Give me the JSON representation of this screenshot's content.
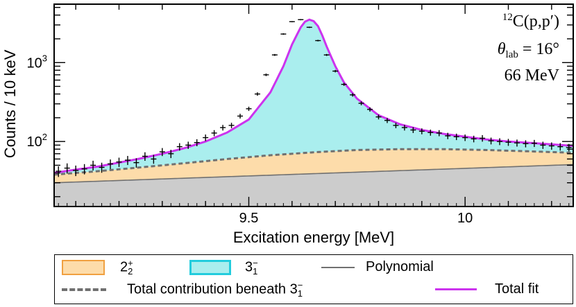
{
  "chart_data": {
    "type": "line",
    "scale": "log-y",
    "xlabel": "Excitation energy [MeV]",
    "ylabel": "Counts / 10 keV",
    "xlim": [
      9.05,
      10.25
    ],
    "ylim": [
      15,
      5500
    ],
    "x_ticks": [
      {
        "value": 9.5,
        "label": "9.5"
      },
      {
        "value": 10.0,
        "label": "10"
      }
    ],
    "y_ticks": [
      {
        "value": 100,
        "base": "10",
        "exp": "2"
      },
      {
        "value": 1000,
        "base": "10",
        "exp": "3"
      }
    ],
    "annotation": {
      "reaction_mass": "12",
      "reaction": "C(p,p′)",
      "theta": "θ",
      "theta_sub": "lab",
      "theta_val": " = 16°",
      "energy": "66 MeV"
    },
    "series": [
      {
        "name": "Polynomial",
        "color": "#707070",
        "x": [
          9.05,
          10.25
        ],
        "y": [
          30,
          51
        ]
      },
      {
        "name": "Total contribution beneath 3-1",
        "color": "#707070",
        "dash": true,
        "x": [
          9.05,
          9.15,
          9.25,
          9.35,
          9.45,
          9.55,
          9.65,
          9.75,
          9.85,
          9.95,
          10.05,
          10.15,
          10.25
        ],
        "y": [
          38,
          42,
          47,
          53,
          60,
          67,
          73,
          78,
          80,
          80,
          78,
          75,
          72
        ]
      },
      {
        "name": "Total fit",
        "color": "#cc33ee",
        "x": [
          9.05,
          9.1,
          9.15,
          9.2,
          9.25,
          9.3,
          9.35,
          9.4,
          9.45,
          9.5,
          9.55,
          9.58,
          9.6,
          9.62,
          9.63,
          9.64,
          9.65,
          9.66,
          9.67,
          9.68,
          9.7,
          9.72,
          9.75,
          9.8,
          9.85,
          9.9,
          9.95,
          10.0,
          10.05,
          10.1,
          10.15,
          10.2,
          10.25
        ],
        "y": [
          40,
          44,
          48,
          54,
          61,
          70,
          82,
          100,
          130,
          190,
          420,
          900,
          1700,
          2800,
          3300,
          3500,
          3350,
          2900,
          2200,
          1600,
          900,
          560,
          350,
          215,
          165,
          140,
          125,
          115,
          106,
          100,
          96,
          92,
          88
        ]
      },
      {
        "name": "Data",
        "color": "#000000",
        "markers": "cross",
        "x": [
          9.06,
          9.08,
          9.1,
          9.12,
          9.14,
          9.16,
          9.18,
          9.2,
          9.22,
          9.24,
          9.26,
          9.28,
          9.3,
          9.32,
          9.34,
          9.36,
          9.38,
          9.4,
          9.42,
          9.44,
          9.46,
          9.48,
          9.5,
          9.52,
          9.54,
          9.56,
          9.58,
          9.6,
          9.62,
          9.64,
          9.66,
          9.68,
          9.7,
          9.72,
          9.74,
          9.76,
          9.78,
          9.8,
          9.82,
          9.84,
          9.86,
          9.88,
          9.9,
          9.92,
          9.94,
          9.96,
          9.98,
          10.0,
          10.02,
          10.04,
          10.06,
          10.08,
          10.1,
          10.12,
          10.14,
          10.16,
          10.18,
          10.2,
          10.22,
          10.24
        ],
        "y": [
          42,
          46,
          43,
          45,
          50,
          47,
          52,
          55,
          58,
          54,
          65,
          60,
          74,
          70,
          86,
          90,
          97,
          112,
          128,
          150,
          160,
          210,
          260,
          400,
          700,
          1250,
          2300,
          3300,
          3500,
          2800,
          1900,
          1250,
          780,
          530,
          390,
          305,
          255,
          205,
          185,
          160,
          150,
          140,
          135,
          130,
          128,
          118,
          115,
          112,
          108,
          110,
          102,
          100,
          98,
          96,
          94,
          95,
          90,
          88,
          86,
          84
        ]
      }
    ],
    "fill_regions": [
      {
        "name": "3-1",
        "color": "#aaeeee",
        "between": [
          "Total contribution beneath 3-1",
          "Total fit"
        ]
      },
      {
        "name": "2+2",
        "color": "#fddcaa",
        "between": [
          "Polynomial",
          "Total contribution beneath 3-1"
        ]
      },
      {
        "name": "Polynomial background",
        "color": "#cccccc",
        "between": [
          "axis",
          "Polynomial"
        ]
      }
    ]
  },
  "legend": {
    "two_plus_base": "2",
    "two_plus_sup": "+",
    "two_plus_sub": "2",
    "two_plus_color": "#fddcaa",
    "three_minus_base": "3",
    "three_minus_sup": "−",
    "three_minus_sub": "1",
    "three_minus_color": "#aaeeee",
    "three_minus_border": "#22ccdd",
    "polynomial_label": "Polynomial",
    "total_contrib_label": "Total contribution beneath 3",
    "total_contrib_sup": "−",
    "total_contrib_sub": "1",
    "total_fit_label": "Total fit",
    "total_fit_color": "#cc33ee"
  }
}
